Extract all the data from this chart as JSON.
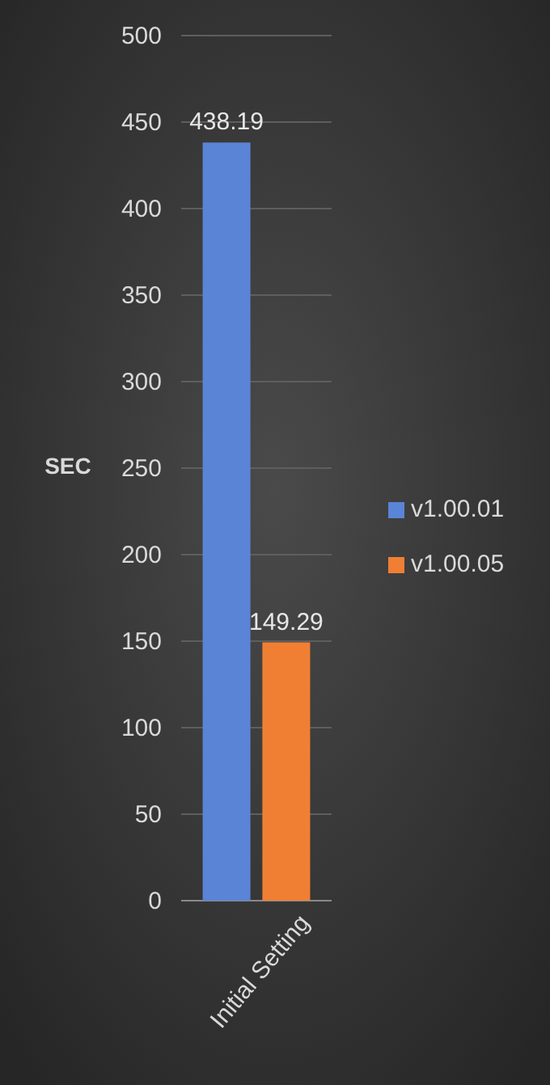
{
  "chart_data": {
    "type": "bar",
    "ylabel": "SEC",
    "categories": [
      "Initial Setting"
    ],
    "series": [
      {
        "name": "v1.00.01",
        "color": "#5a84d6",
        "values": [
          438.19
        ]
      },
      {
        "name": "v1.00.05",
        "color": "#f07f33",
        "values": [
          149.29
        ]
      }
    ],
    "ylim": [
      0,
      500
    ],
    "yticks": [
      0,
      50,
      100,
      150,
      200,
      250,
      300,
      350,
      400,
      450,
      500
    ],
    "grid": "y",
    "legend": "right",
    "data_labels": true
  }
}
